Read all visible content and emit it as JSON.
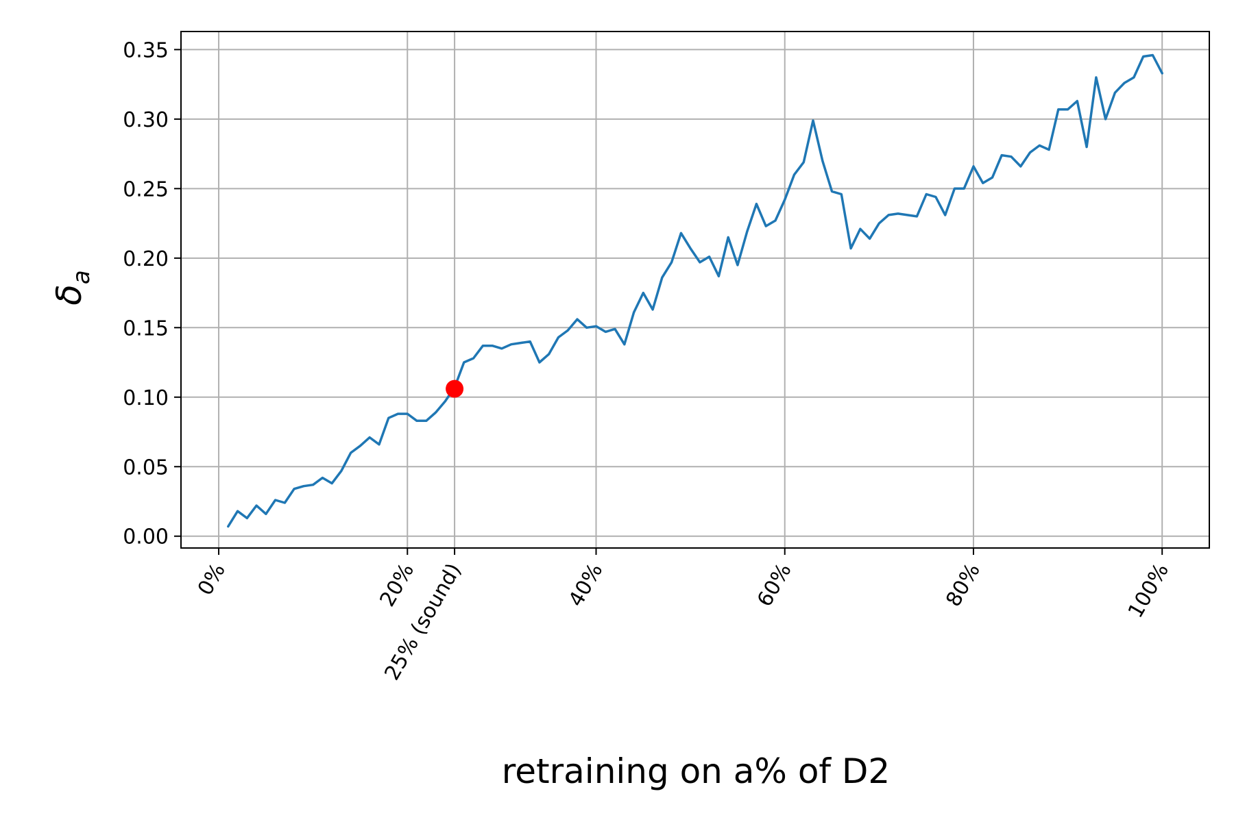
{
  "chart_data": {
    "type": "line",
    "xlabel": "retraining on a% of D2",
    "ylabel": "δa",
    "ylabel_main": "δ",
    "ylabel_sub": "a",
    "xlim": [
      -4,
      105
    ],
    "ylim": [
      -0.0085,
      0.363
    ],
    "x_ticks": [
      {
        "value": 0,
        "label": "0%"
      },
      {
        "value": 20,
        "label": "20%"
      },
      {
        "value": 25,
        "label": "25% (sound)"
      },
      {
        "value": 40,
        "label": "40%"
      },
      {
        "value": 60,
        "label": "60%"
      },
      {
        "value": 80,
        "label": "80%"
      },
      {
        "value": 100,
        "label": "100%"
      }
    ],
    "y_ticks": [
      {
        "value": 0.0,
        "label": "0.00"
      },
      {
        "value": 0.05,
        "label": "0.05"
      },
      {
        "value": 0.1,
        "label": "0.10"
      },
      {
        "value": 0.15,
        "label": "0.15"
      },
      {
        "value": 0.2,
        "label": "0.20"
      },
      {
        "value": 0.25,
        "label": "0.25"
      },
      {
        "value": 0.3,
        "label": "0.30"
      },
      {
        "value": 0.35,
        "label": "0.35"
      }
    ],
    "grid": true,
    "series": [
      {
        "color": "#1f77b4",
        "x": [
          1,
          2,
          3,
          4,
          5,
          6,
          7,
          8,
          9,
          10,
          11,
          12,
          13,
          14,
          15,
          16,
          17,
          18,
          19,
          20,
          21,
          22,
          23,
          24,
          25,
          26,
          27,
          28,
          29,
          30,
          31,
          32,
          33,
          34,
          35,
          36,
          37,
          38,
          39,
          40,
          41,
          42,
          43,
          44,
          45,
          46,
          47,
          48,
          49,
          50,
          51,
          52,
          53,
          54,
          55,
          56,
          57,
          58,
          59,
          60,
          61,
          62,
          63,
          64,
          65,
          66,
          67,
          68,
          69,
          70,
          71,
          72,
          73,
          74,
          75,
          76,
          77,
          78,
          79,
          80,
          81,
          82,
          83,
          84,
          85,
          86,
          87,
          88,
          89,
          90,
          91,
          92,
          93,
          94,
          95,
          96,
          97,
          98,
          99,
          100
        ],
        "y": [
          0.007,
          0.018,
          0.013,
          0.022,
          0.016,
          0.026,
          0.024,
          0.034,
          0.036,
          0.037,
          0.042,
          0.038,
          0.047,
          0.06,
          0.065,
          0.071,
          0.066,
          0.085,
          0.088,
          0.088,
          0.083,
          0.083,
          0.089,
          0.097,
          0.107,
          0.125,
          0.128,
          0.137,
          0.137,
          0.135,
          0.138,
          0.139,
          0.14,
          0.125,
          0.131,
          0.143,
          0.148,
          0.156,
          0.15,
          0.151,
          0.147,
          0.149,
          0.138,
          0.161,
          0.175,
          0.163,
          0.186,
          0.197,
          0.218,
          0.207,
          0.197,
          0.201,
          0.187,
          0.215,
          0.195,
          0.219,
          0.239,
          0.223,
          0.227,
          0.242,
          0.26,
          0.269,
          0.299,
          0.27,
          0.248,
          0.246,
          0.207,
          0.221,
          0.214,
          0.225,
          0.231,
          0.232,
          0.231,
          0.23,
          0.246,
          0.244,
          0.231,
          0.25,
          0.25,
          0.266,
          0.254,
          0.258,
          0.274,
          0.273,
          0.266,
          0.276,
          0.281,
          0.278,
          0.307,
          0.307,
          0.313,
          0.28,
          0.33,
          0.3,
          0.319,
          0.326,
          0.33,
          0.345,
          0.346,
          0.333
        ]
      }
    ],
    "highlight_point": {
      "x": 25,
      "y": 0.106,
      "color": "#ff0000"
    }
  }
}
